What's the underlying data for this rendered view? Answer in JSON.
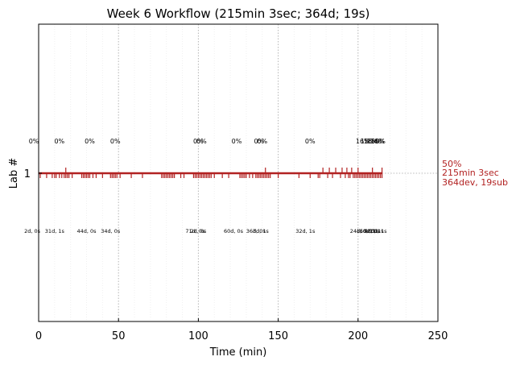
{
  "chart_data": {
    "type": "line",
    "title": "Week 6 Workflow (215min 3sec; 364d; 19s)",
    "xlabel": "Time (min)",
    "ylabel": "Lab #",
    "xlim": [
      0,
      250
    ],
    "x_ticks": [
      "0",
      "50",
      "100",
      "150",
      "200",
      "250"
    ],
    "y_tick": "1",
    "grid": "vertical dotted at major ticks",
    "color": "#b22222",
    "series": [
      {
        "start": 0,
        "end": 215.05,
        "y": 1
      }
    ],
    "summary_lines": [
      "50%",
      "215min 3sec",
      "364dev, 19sub"
    ],
    "percent_annotations": [
      {
        "x": -3,
        "text": "0%"
      },
      {
        "x": 13,
        "text": "0%"
      },
      {
        "x": 32,
        "text": "0%"
      },
      {
        "x": 48,
        "text": "0%"
      },
      {
        "x": 100,
        "text": "0%"
      },
      {
        "x": 102,
        "text": "0%"
      },
      {
        "x": 124,
        "text": "0%"
      },
      {
        "x": 138,
        "text": "0%"
      },
      {
        "x": 140,
        "text": "0%"
      },
      {
        "x": 170,
        "text": "0%"
      },
      {
        "x": 203,
        "text": "16%"
      },
      {
        "x": 206,
        "text": "15%"
      },
      {
        "x": 208,
        "text": "16%"
      },
      {
        "x": 210,
        "text": "15%"
      },
      {
        "x": 212,
        "text": "16%"
      },
      {
        "x": 214,
        "text": "0%"
      }
    ],
    "count_annotations": [
      {
        "x": -4,
        "text": "2d, 0s"
      },
      {
        "x": 10,
        "text": "31d, 1s"
      },
      {
        "x": 30,
        "text": "44d, 0s"
      },
      {
        "x": 45,
        "text": "34d, 0s"
      },
      {
        "x": 98,
        "text": "71d, 0s"
      },
      {
        "x": 100,
        "text": "2d, 0s"
      },
      {
        "x": 122,
        "text": "60d, 0s"
      },
      {
        "x": 136,
        "text": "36d, 0s"
      },
      {
        "x": 139,
        "text": "3d, 1s"
      },
      {
        "x": 167,
        "text": "32d, 1s"
      },
      {
        "x": 201,
        "text": "24d, 1s"
      },
      {
        "x": 205,
        "text": "16d, 1s"
      },
      {
        "x": 207,
        "text": "10d, 1s"
      },
      {
        "x": 209,
        "text": "4d, 1s"
      },
      {
        "x": 211,
        "text": "3d, 1s"
      },
      {
        "x": 213,
        "text": "0d, 1s"
      }
    ],
    "event_ticks": [
      1,
      5,
      8.5,
      10,
      11,
      13,
      14.5,
      16,
      17,
      18,
      19,
      21,
      27,
      28,
      29,
      30,
      31,
      32,
      34,
      36,
      40,
      45,
      46,
      47,
      48,
      49,
      51,
      58,
      65,
      77,
      78,
      79,
      80,
      81,
      82,
      83,
      84,
      85,
      89,
      91,
      97,
      98,
      99,
      100,
      101,
      102,
      103,
      104,
      105,
      106,
      107,
      108,
      110,
      115,
      119,
      126,
      127,
      128,
      129,
      130,
      132,
      134,
      136,
      137,
      138,
      139,
      140,
      141,
      142,
      143,
      144,
      145,
      150,
      163,
      170,
      175,
      176,
      181,
      184,
      189,
      192,
      194,
      195,
      197,
      198,
      199,
      200,
      201,
      202,
      203,
      204,
      205,
      206,
      207,
      208,
      209,
      210,
      211,
      212,
      213,
      214,
      215
    ],
    "up_ticks": [
      17,
      142,
      178,
      182,
      186,
      190,
      193,
      196,
      200,
      209,
      215
    ]
  }
}
